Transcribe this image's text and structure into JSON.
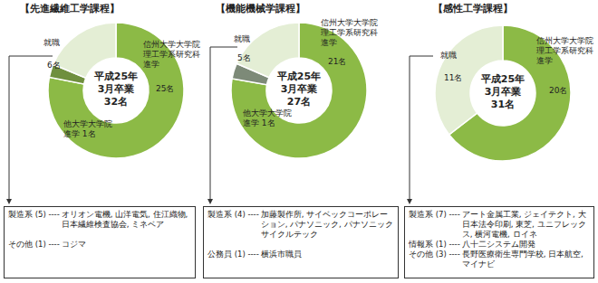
{
  "chart_data": [
    {
      "type": "pie",
      "title": "【先進繊維工学課程】",
      "center_text": [
        "平成25年",
        "3月卒業",
        "32名"
      ],
      "categories": [
        "信州大学大学院 理工学系研究科 進学",
        "他大学大学院 進学",
        "就職"
      ],
      "values": [
        25,
        1,
        6
      ],
      "value_labels": [
        "25名",
        "1名",
        "6名"
      ],
      "colors": [
        "#8cba46",
        "#6f8f3e",
        "#e4eed5"
      ],
      "notes": [
        {
          "head": "製造系 (5) ----",
          "text": "オリオン電機, 山洋電気, 住江織物, 日本繊維検査協会, ミネベア"
        },
        {
          "head": "その他 (1) ----",
          "text": "コジマ"
        }
      ]
    },
    {
      "type": "pie",
      "title": "【機能機械学課程】",
      "center_text": [
        "平成25年",
        "3月卒業",
        "27名"
      ],
      "categories": [
        "信州大学大学院 理工学系研究科 進学",
        "他大学大学院 進学",
        "就職"
      ],
      "values": [
        21,
        1,
        5
      ],
      "value_labels": [
        "21名",
        "1名",
        "5名"
      ],
      "colors": [
        "#8cba46",
        "#7d8a78",
        "#e4eed5"
      ],
      "notes": [
        {
          "head": "製造系 (4) ----",
          "text": "加藤製作所, サイベックコーポレーション, パナソニック, パナソニックサイクルテック"
        },
        {
          "head": "公務員 (1) ----",
          "text": "横浜市職員"
        }
      ]
    },
    {
      "type": "pie",
      "title": "【感性工学課程】",
      "center_text": [
        "平成25年",
        "3月卒業",
        "31名"
      ],
      "categories": [
        "信州大学大学院 理工学系研究科 進学",
        "就職"
      ],
      "values": [
        20,
        11
      ],
      "value_labels": [
        "20名",
        "11名"
      ],
      "colors": [
        "#8cba46",
        "#e4eed5"
      ],
      "notes": [
        {
          "head": "製造系 (7) ----",
          "text": "アート金属工業, ジェイテクト, 大日本法令印刷, 東芝, ユニフレックス, 横河電機, ロイネ"
        },
        {
          "head": "情報系 (1) ----",
          "text": "八十二システム開発"
        },
        {
          "head": "その他 (3) ----",
          "text": "長野医療衛生専門学校, 日本航空, マイナビ"
        }
      ]
    }
  ]
}
